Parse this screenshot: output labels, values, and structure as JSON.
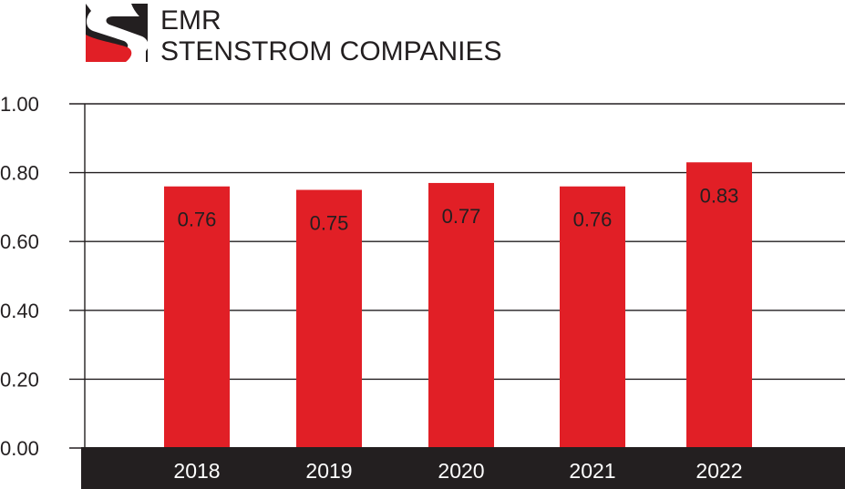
{
  "brand": {
    "line1": "EMR",
    "line2": "STENSTROM COMPANIES",
    "logo_icon": "stenstrom-s-logo-icon"
  },
  "colors": {
    "bar": "#e11f26",
    "baseline_band": "#231f20",
    "gridline": "#231f20",
    "text": "#231f20",
    "category_text": "#ffffff",
    "logo_dark": "#231f20",
    "logo_red": "#e11f26"
  },
  "chart_data": {
    "type": "bar",
    "title": "",
    "xlabel": "",
    "ylabel": "",
    "categories": [
      "2018",
      "2019",
      "2020",
      "2021",
      "2022"
    ],
    "values": [
      0.76,
      0.75,
      0.77,
      0.76,
      0.83
    ],
    "value_labels": [
      "0.76",
      "0.75",
      "0.77",
      "0.76",
      "0.83"
    ],
    "ylim": [
      0,
      1.0
    ],
    "yticks": [
      0,
      0.2,
      0.4,
      0.6,
      0.8,
      1.0
    ],
    "ytick_labels": [
      "0.00",
      "0.20",
      "0.40",
      "0.60",
      "0.80",
      "1.00"
    ],
    "grid": true,
    "legend": "none"
  }
}
